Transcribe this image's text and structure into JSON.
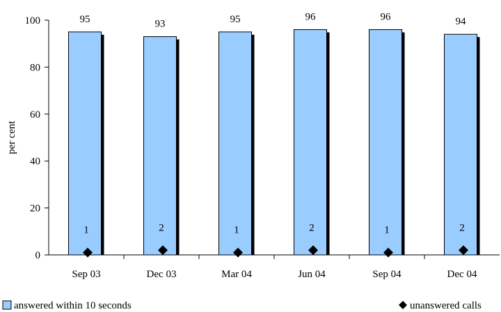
{
  "chart_data": {
    "type": "bar",
    "categories": [
      "Sep 03",
      "Dec 03",
      "Mar 04",
      "Jun 04",
      "Sep 04",
      "Dec 04"
    ],
    "series": [
      {
        "name": "answered within 10 seconds",
        "kind": "bar",
        "values": [
          95,
          93,
          95,
          96,
          96,
          94
        ],
        "labels": [
          "95",
          "93",
          "95",
          "96",
          "96",
          "94"
        ],
        "color": "#99CCFF",
        "shadow_color": "#000000"
      },
      {
        "name": "unanswered calls",
        "kind": "scatter",
        "marker": "diamond",
        "values": [
          1,
          2,
          1,
          2,
          1,
          2
        ],
        "labels": [
          "1",
          "2",
          "1",
          "2",
          "1",
          "2"
        ],
        "color": "#000000"
      }
    ],
    "title": "",
    "xlabel": "",
    "ylabel": "per cent",
    "ylim": [
      0,
      100
    ],
    "yticks": [
      0,
      20,
      40,
      60,
      80,
      100
    ],
    "grid": false,
    "legend_position": "bottom"
  }
}
